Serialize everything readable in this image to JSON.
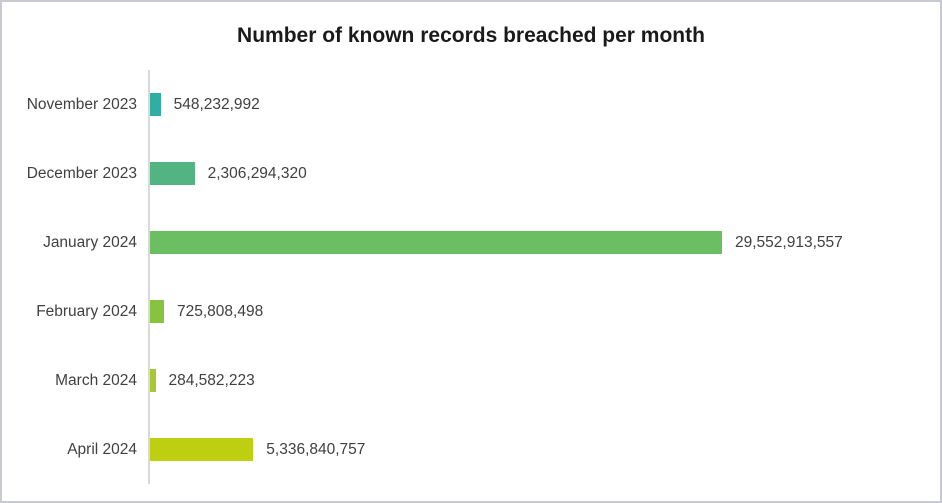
{
  "chart_data": {
    "type": "bar",
    "orientation": "horizontal",
    "title": "Number of known records breached per month",
    "categories": [
      "November 2023",
      "December 2023",
      "January 2024",
      "February 2024",
      "March 2024",
      "April 2024"
    ],
    "values": [
      548232992,
      2306294320,
      29552913557,
      725808498,
      284582223,
      5336840757
    ],
    "value_labels": [
      "548,232,992",
      "2,306,294,320",
      "29,552,913,557",
      "725,808,498",
      "284,582,223",
      "5,336,840,757"
    ],
    "bar_colors": [
      "#31ada3",
      "#52b483",
      "#6cbe62",
      "#86c440",
      "#a6c92f",
      "#bdcf10"
    ],
    "xlabel": "",
    "ylabel": "",
    "xlim": [
      0,
      30500000000
    ],
    "grid": false,
    "legend": false,
    "data_labels": true,
    "axis_line_color": "#d9d9d9",
    "label_color": "#404040",
    "title_color": "#1a1a1a"
  }
}
